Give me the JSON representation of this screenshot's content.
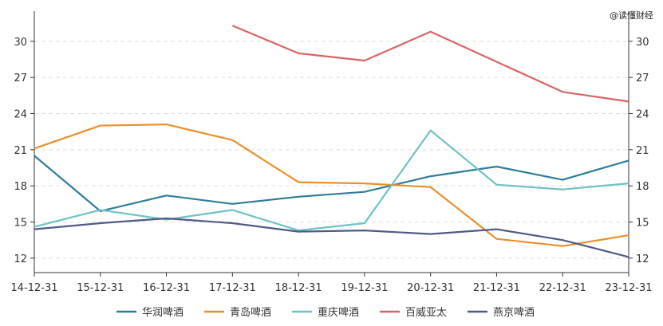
{
  "watermark": "@读懂财经",
  "chart_data": {
    "type": "line",
    "x": [
      "14-12-31",
      "15-12-31",
      "16-12-31",
      "17-12-31",
      "18-12-31",
      "19-12-31",
      "20-12-31",
      "21-12-31",
      "22-12-31",
      "23-12-31"
    ],
    "ylim": [
      10.8,
      32.5
    ],
    "yticks": [
      12,
      15,
      18,
      21,
      24,
      27,
      30
    ],
    "grid": true,
    "legend_position": "bottom",
    "series": [
      {
        "name": "华润啤酒",
        "color": "#2e7d9a",
        "values": [
          20.5,
          15.9,
          17.2,
          16.5,
          17.1,
          17.5,
          18.8,
          19.6,
          18.5,
          20.1
        ]
      },
      {
        "name": "青岛啤酒",
        "color": "#ea8f2d",
        "values": [
          21.1,
          23.0,
          23.1,
          21.8,
          18.3,
          18.2,
          17.9,
          13.6,
          13.0,
          13.9
        ]
      },
      {
        "name": "重庆啤酒",
        "color": "#6ec2c4",
        "values": [
          14.6,
          16.0,
          15.2,
          16.0,
          14.3,
          14.9,
          22.6,
          18.1,
          17.7,
          18.2
        ]
      },
      {
        "name": "百威亚太",
        "color": "#d86464",
        "values": [
          null,
          null,
          null,
          31.3,
          29.0,
          28.4,
          30.8,
          28.3,
          25.8,
          25.0
        ]
      },
      {
        "name": "燕京啤酒",
        "color": "#4f5a87",
        "values": [
          14.4,
          14.9,
          15.3,
          14.9,
          14.2,
          14.3,
          14.0,
          14.4,
          13.5,
          12.1
        ]
      }
    ]
  }
}
